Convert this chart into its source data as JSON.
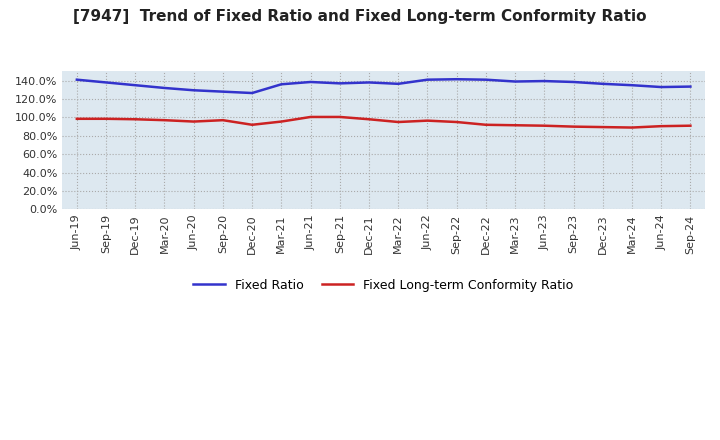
{
  "title": "[7947]  Trend of Fixed Ratio and Fixed Long-term Conformity Ratio",
  "x_labels": [
    "Jun-19",
    "Sep-19",
    "Dec-19",
    "Mar-20",
    "Jun-20",
    "Sep-20",
    "Dec-20",
    "Mar-21",
    "Jun-21",
    "Sep-21",
    "Dec-21",
    "Mar-22",
    "Jun-22",
    "Sep-22",
    "Dec-22",
    "Mar-23",
    "Jun-23",
    "Sep-23",
    "Dec-23",
    "Mar-24",
    "Jun-24",
    "Sep-24"
  ],
  "fixed_ratio": [
    141.0,
    138.0,
    135.0,
    132.0,
    129.5,
    128.0,
    126.5,
    136.0,
    138.5,
    137.0,
    138.0,
    136.5,
    141.0,
    141.5,
    141.0,
    139.0,
    139.5,
    138.5,
    136.5,
    135.0,
    133.0,
    133.5
  ],
  "fixed_lt_ratio": [
    98.5,
    98.5,
    98.0,
    97.0,
    95.5,
    97.0,
    92.0,
    95.5,
    100.5,
    100.5,
    98.0,
    95.0,
    96.5,
    95.0,
    92.0,
    91.5,
    91.0,
    90.0,
    89.5,
    89.0,
    90.5,
    91.0
  ],
  "fixed_ratio_color": "#3333CC",
  "fixed_lt_ratio_color": "#CC2222",
  "ylim": [
    0,
    150
  ],
  "yticks": [
    0,
    20,
    40,
    60,
    80,
    100,
    120,
    140
  ],
  "grid_color": "#aaaaaa",
  "plot_bg_color": "#dde8f0",
  "fig_bg_color": "#ffffff",
  "line_width": 1.8,
  "title_fontsize": 11,
  "tick_fontsize": 8
}
